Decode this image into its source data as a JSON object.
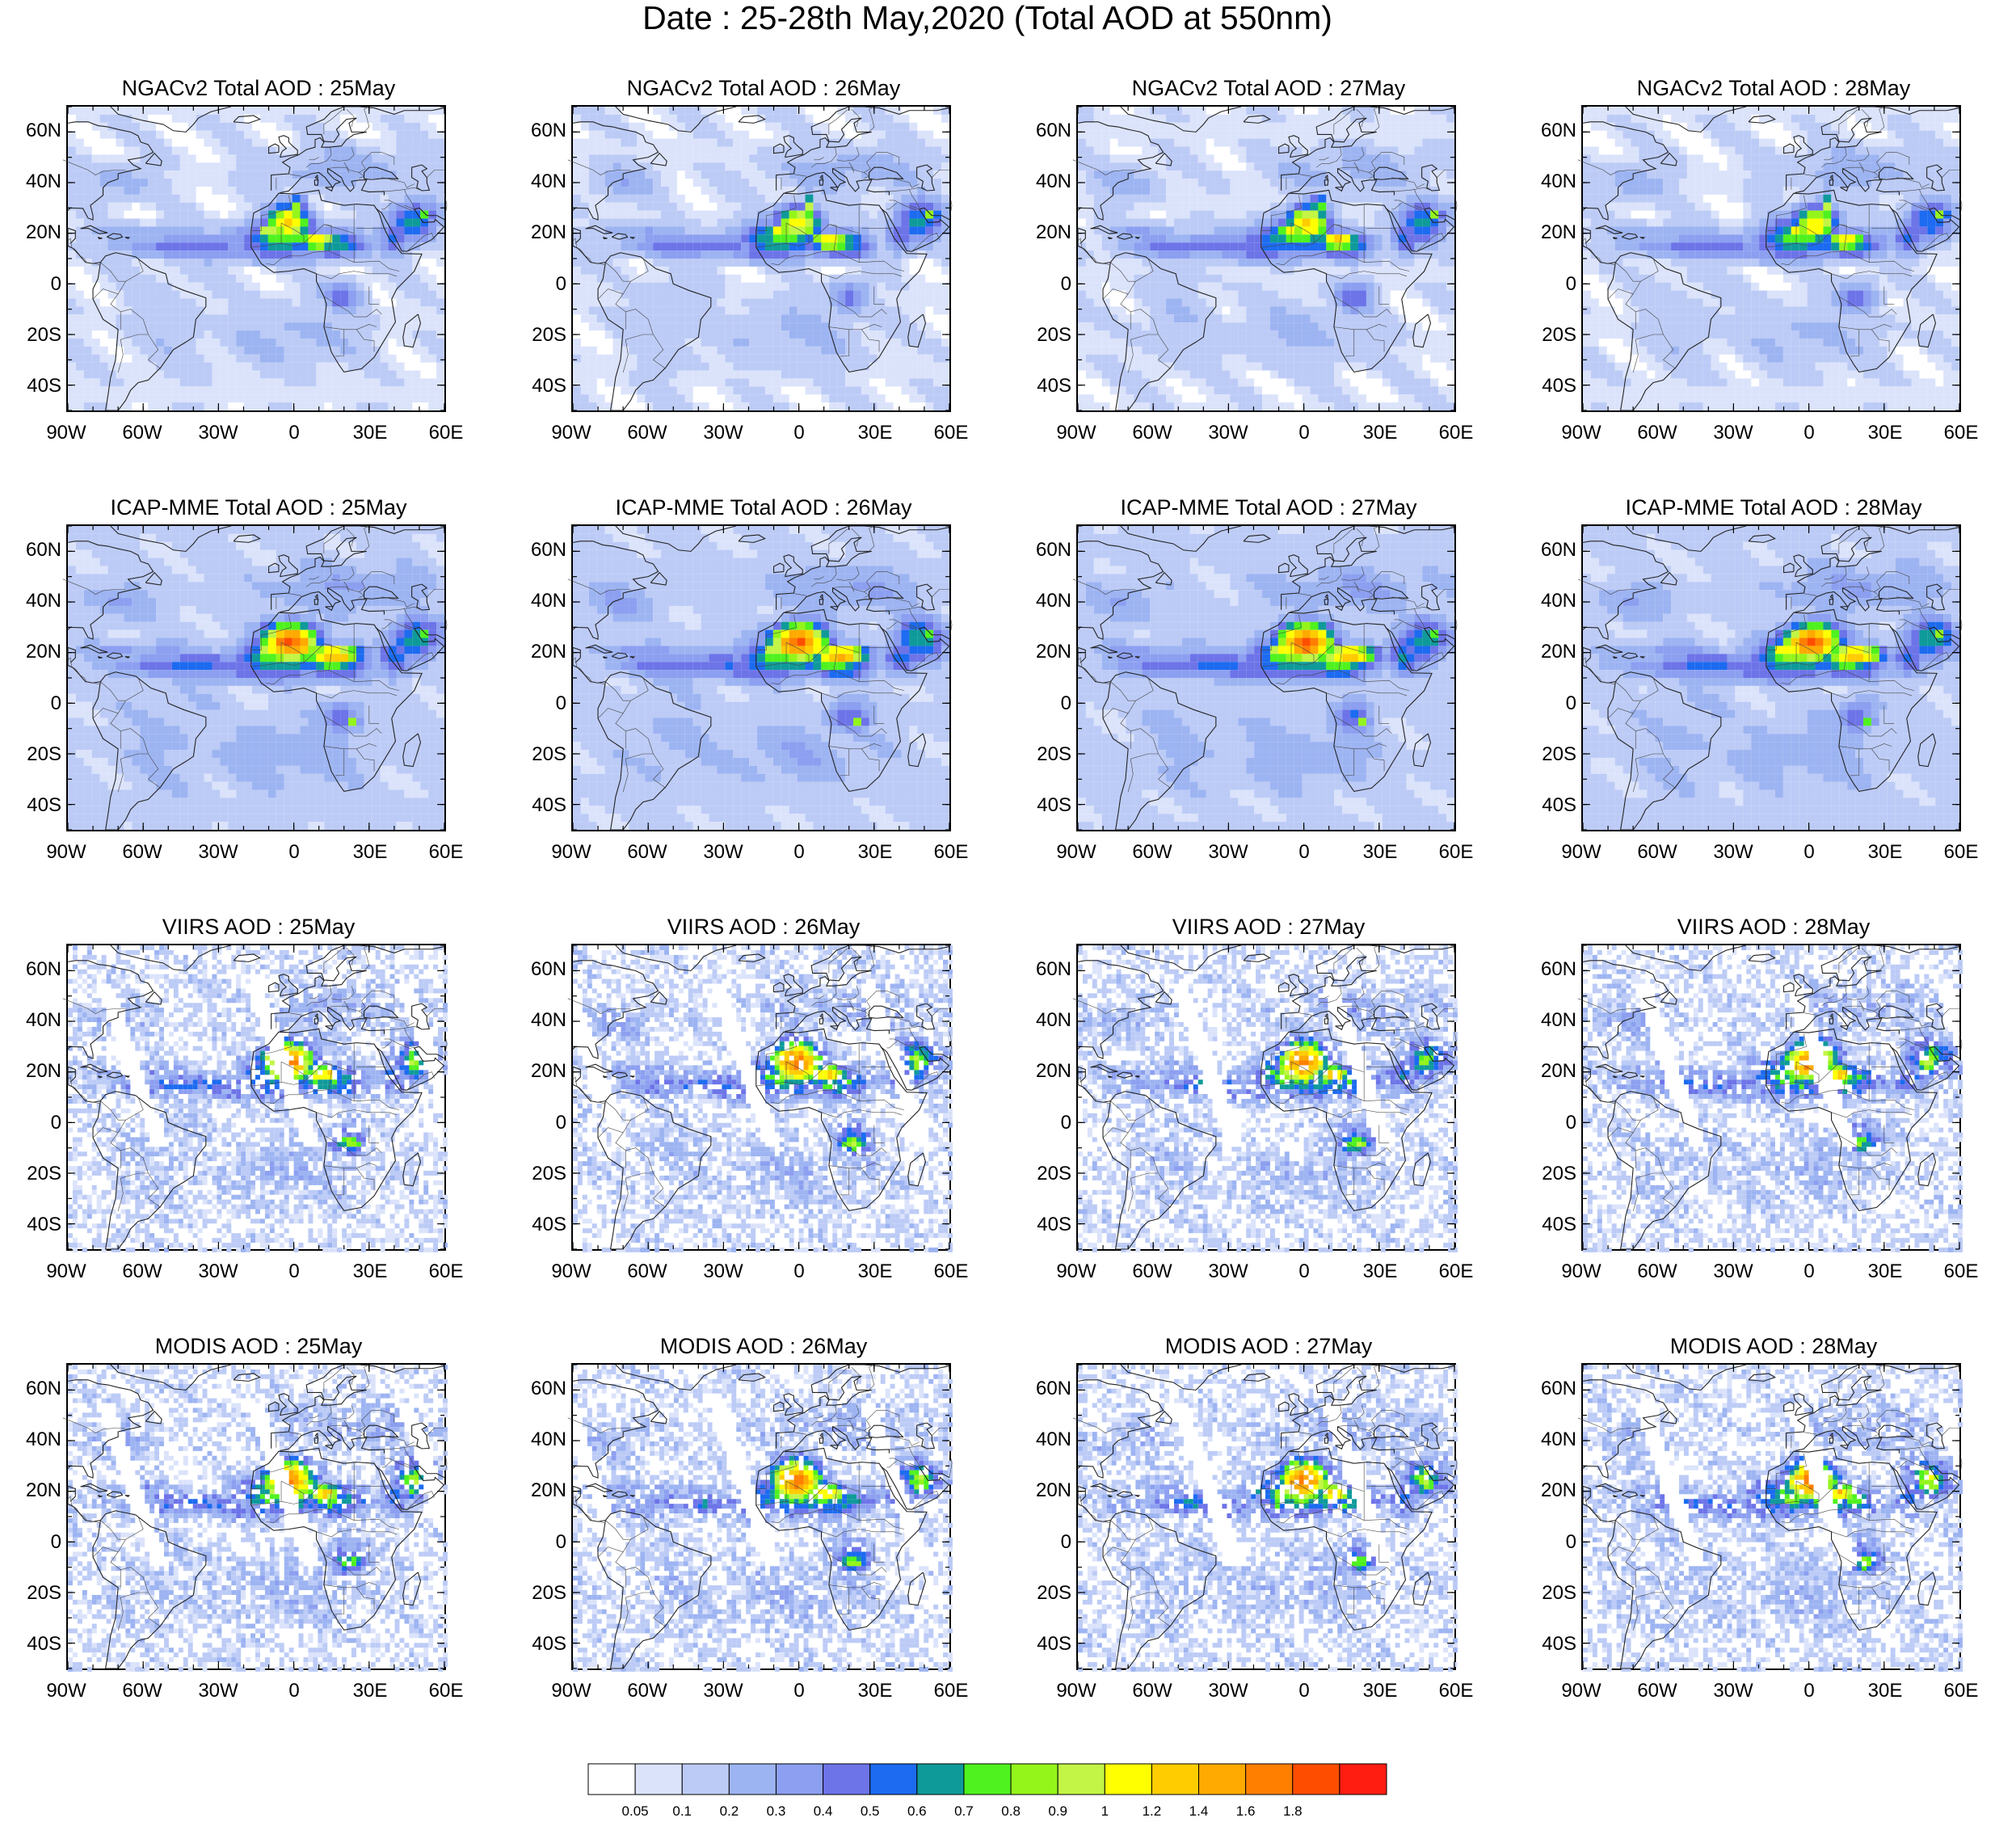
{
  "title": "Date : 25-28th May,2020 (Total AOD at 550nm)",
  "rows": [
    {
      "source": "NGACv2 Total AOD",
      "style": "smooth"
    },
    {
      "source": "ICAP-MME Total AOD",
      "style": "smooth-strong"
    },
    {
      "source": "VIIRS AOD",
      "style": "pixel"
    },
    {
      "source": "MODIS AOD",
      "style": "pixel"
    }
  ],
  "days": [
    "25May",
    "26May",
    "27May",
    "28May"
  ],
  "panel_titles": [
    [
      "NGACv2 Total AOD : 25May",
      "NGACv2 Total AOD : 26May",
      "NGACv2 Total AOD : 27May",
      "NGACv2 Total AOD : 28May"
    ],
    [
      "ICAP-MME Total AOD : 25May",
      "ICAP-MME Total AOD : 26May",
      "ICAP-MME Total AOD : 27May",
      "ICAP-MME Total AOD : 28May"
    ],
    [
      "VIIRS AOD : 25May",
      "VIIRS AOD : 26May",
      "VIIRS AOD : 27May",
      "VIIRS AOD : 28May"
    ],
    [
      "MODIS AOD : 25May",
      "MODIS AOD : 26May",
      "MODIS AOD : 27May",
      "MODIS AOD : 28May"
    ]
  ],
  "lat_ticks": [
    {
      "value": 60,
      "label": "60N"
    },
    {
      "value": 40,
      "label": "40N"
    },
    {
      "value": 20,
      "label": "20N"
    },
    {
      "value": 0,
      "label": "0"
    },
    {
      "value": -20,
      "label": "20S"
    },
    {
      "value": -40,
      "label": "40S"
    }
  ],
  "lon_ticks": [
    {
      "value": -90,
      "label": "90W"
    },
    {
      "value": -60,
      "label": "60W"
    },
    {
      "value": -30,
      "label": "30W"
    },
    {
      "value": 0,
      "label": "0"
    },
    {
      "value": 30,
      "label": "30E"
    },
    {
      "value": 60,
      "label": "60E"
    }
  ],
  "extent": {
    "lon_min": -90,
    "lon_max": 60,
    "lat_min": -50,
    "lat_max": 70
  },
  "colorbar": {
    "colors": [
      "#ffffff",
      "#dbe3fb",
      "#bccbf6",
      "#9db4f2",
      "#8c9ff0",
      "#6d74e8",
      "#1c6bf0",
      "#0f9a9a",
      "#4ff21f",
      "#94f51a",
      "#c2f545",
      "#ffff00",
      "#ffcc00",
      "#ffaa00",
      "#ff7f00",
      "#ff4d00",
      "#ff1d12"
    ],
    "labels": [
      "0.05",
      "0.1",
      "0.2",
      "0.3",
      "0.4",
      "0.5",
      "0.6",
      "0.7",
      "0.8",
      "0.9",
      "1",
      "1.2",
      "1.4",
      "1.6",
      "1.8"
    ]
  }
}
